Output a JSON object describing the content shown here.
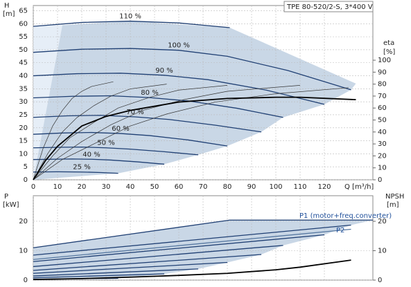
{
  "chart_data": [
    {
      "type": "line",
      "title": "TPE 80-520/2-S, 3*400 V",
      "y_label": "H",
      "y_unit": "[m]",
      "y2_label": "eta",
      "y2_unit": "[%]",
      "x_label": "Q [m³/h]",
      "xlim": [
        0,
        140
      ],
      "xticks": [
        0,
        10,
        20,
        30,
        40,
        50,
        60,
        70,
        80,
        90,
        100,
        110,
        120
      ],
      "ylim": [
        0,
        67
      ],
      "yticks": [
        0,
        5,
        10,
        15,
        20,
        25,
        30,
        35,
        40,
        45,
        50,
        55,
        60,
        65
      ],
      "y2lim": [
        0,
        145.7
      ],
      "y2ticks": [
        0,
        10,
        20,
        30,
        40,
        50,
        60,
        70,
        80,
        90,
        100
      ],
      "grid": true,
      "areas": [
        {
          "color": "#e6eef7",
          "x": [
            0,
            12,
            0
          ],
          "values": [
            0,
            59.5,
            59
          ]
        },
        {
          "color": "#c9d7e6",
          "x": [
            0,
            12,
            40,
            81,
            133,
            131,
            120,
            103,
            94,
            80,
            68,
            54,
            35,
            0
          ],
          "values": [
            0,
            59.5,
            61,
            58.5,
            37,
            34.6,
            29,
            24,
            18.4,
            13,
            9.6,
            6,
            2.5,
            0
          ]
        }
      ],
      "series": [
        {
          "name": "110 %",
          "color": "#1f3f73",
          "x": [
            0,
            20,
            40,
            60,
            81
          ],
          "values": [
            59,
            60.5,
            61,
            60.3,
            58.5
          ]
        },
        {
          "name": "100 %",
          "color": "#1f3f73",
          "x": [
            0,
            20,
            40,
            60,
            80,
            105,
            131
          ],
          "values": [
            49,
            50.2,
            50.5,
            49.8,
            47.5,
            42,
            34.6
          ]
        },
        {
          "name": "90 %",
          "color": "#1f3f73",
          "x": [
            0,
            18,
            36,
            54,
            72,
            96,
            120
          ],
          "values": [
            40,
            40.8,
            41,
            40.2,
            38.5,
            34.5,
            29
          ]
        },
        {
          "name": "80 %",
          "color": "#1f3f73",
          "x": [
            0,
            16,
            32,
            48,
            64,
            84,
            103
          ],
          "values": [
            31.5,
            32.1,
            32.3,
            31.6,
            30.3,
            27.5,
            24
          ]
        },
        {
          "name": "70 %",
          "color": "#1f3f73",
          "x": [
            0,
            14,
            28,
            42,
            56,
            75,
            94
          ],
          "values": [
            24,
            24.6,
            24.8,
            24.2,
            23.2,
            21,
            18.4
          ]
        },
        {
          "name": "60 %",
          "color": "#1f3f73",
          "x": [
            0,
            12,
            24,
            36,
            48,
            64,
            80
          ],
          "values": [
            17.5,
            18,
            18.2,
            17.8,
            17,
            15.3,
            13
          ]
        },
        {
          "name": "50 %",
          "color": "#1f3f73",
          "x": [
            0,
            10,
            20,
            30,
            40,
            54,
            68
          ],
          "values": [
            12.3,
            12.5,
            12.6,
            12.3,
            11.8,
            10.8,
            9.6
          ]
        },
        {
          "name": "40 %",
          "color": "#1f3f73",
          "x": [
            0,
            8,
            16,
            24,
            32,
            43,
            54
          ],
          "values": [
            7.8,
            7.9,
            8,
            7.9,
            7.6,
            6.9,
            6
          ]
        },
        {
          "name": "25 %",
          "color": "#1f3f73",
          "x": [
            0,
            10,
            20,
            28,
            35
          ],
          "values": [
            3,
            3.1,
            3,
            2.8,
            2.5
          ]
        },
        {
          "axis": "y2",
          "color": "#333333",
          "x": [
            0,
            4,
            8,
            12,
            16,
            20,
            24,
            33
          ],
          "values": [
            0,
            26,
            45,
            58,
            68,
            74,
            78,
            82
          ]
        },
        {
          "axis": "y2",
          "color": "#333333",
          "x": [
            0,
            6,
            12,
            18,
            25,
            32,
            40,
            55
          ],
          "values": [
            0,
            22,
            40,
            52,
            62,
            70,
            76,
            80
          ]
        },
        {
          "axis": "y2",
          "color": "#333333",
          "x": [
            0,
            8,
            15,
            25,
            35,
            48,
            60,
            80
          ],
          "values": [
            0,
            20,
            35,
            48,
            60,
            69,
            75,
            79
          ]
        },
        {
          "axis": "y2",
          "color": "#333333",
          "x": [
            0,
            10,
            20,
            32,
            45,
            62,
            80,
            110
          ],
          "values": [
            0,
            18,
            32,
            46,
            58,
            67,
            74,
            79
          ]
        },
        {
          "axis": "y2",
          "color": "#333333",
          "x": [
            0,
            12,
            25,
            40,
            55,
            75,
            100,
            130
          ],
          "values": [
            0,
            17,
            30,
            45,
            55,
            65,
            72,
            77
          ]
        },
        {
          "axis": "y2",
          "color": "#000000",
          "thick": true,
          "x": [
            0,
            5,
            10,
            20,
            30,
            40,
            60,
            80,
            100,
            110,
            133
          ],
          "values": [
            0,
            16,
            28,
            45,
            53,
            58,
            65,
            68,
            69,
            69,
            67
          ]
        }
      ]
    },
    {
      "type": "line",
      "y_label": "P",
      "y_unit": "[kW]",
      "y2_label": "NPSH",
      "y2_unit": "[m]",
      "annotations": [
        "P1 (motor+freq.converter)",
        "P2"
      ],
      "xlim": [
        0,
        140
      ],
      "ylim": [
        0,
        28.7
      ],
      "yticks": [
        0,
        10,
        20
      ],
      "y2lim": [
        0,
        28.7
      ],
      "y2ticks": [
        0,
        10,
        20
      ],
      "grid": true,
      "areas": [
        {
          "color": "#c9d7e6",
          "x": [
            0,
            81,
            140,
            131,
            120,
            103,
            94,
            80,
            68,
            54,
            35,
            0
          ],
          "values": [
            11,
            20.4,
            20.4,
            18.7,
            15.4,
            11.8,
            8.7,
            6,
            3.8,
            2.1,
            0.6,
            0
          ]
        }
      ],
      "series": [
        {
          "color": "#1f3f73",
          "x": [
            0,
            81,
            140
          ],
          "values": [
            11,
            20.4,
            20.4
          ]
        },
        {
          "color": "#1f3f73",
          "x": [
            0,
            131
          ],
          "values": [
            8.5,
            18.7
          ]
        },
        {
          "color": "#1f3f73",
          "x": [
            0,
            120
          ],
          "values": [
            6.3,
            15.4
          ]
        },
        {
          "color": "#1f3f73",
          "x": [
            0,
            103
          ],
          "values": [
            4.6,
            11.8
          ]
        },
        {
          "color": "#1f3f73",
          "x": [
            0,
            94
          ],
          "values": [
            3.3,
            8.7
          ]
        },
        {
          "color": "#1f3f73",
          "x": [
            0,
            80
          ],
          "values": [
            2.3,
            6
          ]
        },
        {
          "color": "#1f3f73",
          "x": [
            0,
            68
          ],
          "values": [
            1.4,
            3.8
          ]
        },
        {
          "color": "#1f3f73",
          "x": [
            0,
            54
          ],
          "values": [
            0.8,
            2.1
          ]
        },
        {
          "color": "#1f3f73",
          "x": [
            0,
            35
          ],
          "values": [
            0.3,
            0.6
          ]
        },
        {
          "color": "#5577a0",
          "x": [
            0,
            131
          ],
          "values": [
            7,
            17.3
          ]
        },
        {
          "axis": "y2",
          "color": "#000000",
          "thick": true,
          "x": [
            0,
            20,
            40,
            60,
            80,
            100,
            110,
            131
          ],
          "values": [
            0.2,
            0.5,
            1,
            1.6,
            2.3,
            3.5,
            4.4,
            6.8
          ]
        }
      ]
    }
  ]
}
